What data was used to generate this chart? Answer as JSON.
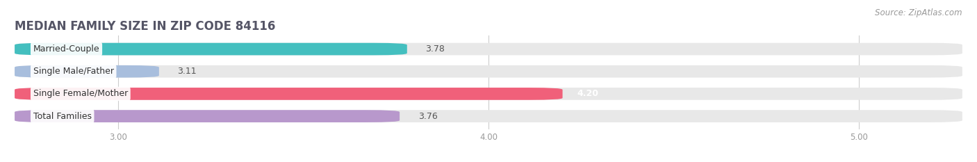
{
  "title": "MEDIAN FAMILY SIZE IN ZIP CODE 84116",
  "source": "Source: ZipAtlas.com",
  "categories": [
    "Married-Couple",
    "Single Male/Father",
    "Single Female/Mother",
    "Total Families"
  ],
  "values": [
    3.78,
    3.11,
    4.2,
    3.76
  ],
  "bar_colors": [
    "#44bfbf",
    "#a8bedd",
    "#f0607a",
    "#b898cc"
  ],
  "value_labels": [
    "3.78",
    "3.11",
    "4.20",
    "3.76"
  ],
  "value_inside": [
    false,
    false,
    true,
    false
  ],
  "xlim_left": 2.72,
  "xlim_right": 5.28,
  "xticks": [
    3.0,
    4.0,
    5.0
  ],
  "xtick_labels": [
    "3.00",
    "4.00",
    "5.00"
  ],
  "background_color": "#ffffff",
  "bar_background_color": "#e8e8e8",
  "title_fontsize": 12,
  "label_fontsize": 9,
  "value_fontsize": 9,
  "tick_fontsize": 8.5,
  "source_fontsize": 8.5
}
